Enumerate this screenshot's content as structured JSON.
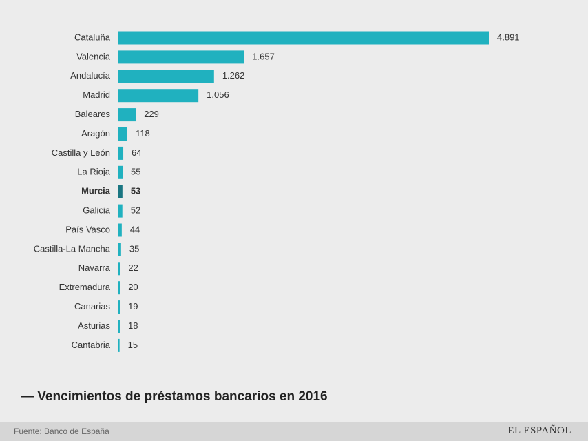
{
  "chart_data": {
    "type": "hbar",
    "title": "— Vencimientos de préstamos bancarios en 2016",
    "categories": [
      "Cataluña",
      "Valencia",
      "Andalucía",
      "Madrid",
      "Baleares",
      "Aragón",
      "Castilla y León",
      "La Rioja",
      "Murcia",
      "Galicia",
      "País Vasco",
      "Castilla-La Mancha",
      "Navarra",
      "Extremadura",
      "Canarias",
      "Asturias",
      "Cantabria"
    ],
    "values": [
      4891,
      1657,
      1262,
      1056,
      229,
      118,
      64,
      55,
      53,
      52,
      44,
      35,
      22,
      20,
      19,
      18,
      15
    ],
    "value_labels": [
      "4.891",
      "1.657",
      "1.262",
      "1.056",
      "229",
      "118",
      "64",
      "55",
      "53",
      "52",
      "44",
      "35",
      "22",
      "20",
      "19",
      "18",
      "15"
    ],
    "color": "#20b1bf",
    "highlight_index": 8,
    "highlight_color": "#1a7682",
    "source": "Fuente: Banco de España",
    "logo": "EL ESPAÑOL"
  }
}
